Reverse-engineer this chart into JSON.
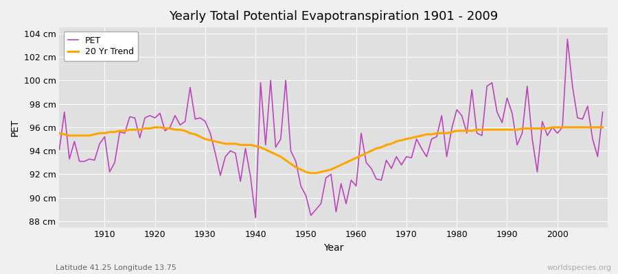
{
  "title": "Yearly Total Potential Evapotranspiration 1901 - 2009",
  "xlabel": "Year",
  "ylabel": "PET",
  "subtitle": "Latitude 41.25 Longitude 13.75",
  "watermark": "worldspecies.org",
  "ylim": [
    87.5,
    104.5
  ],
  "yticks": [
    88,
    90,
    92,
    94,
    96,
    98,
    100,
    102,
    104
  ],
  "ytick_labels": [
    "88 cm",
    "90 cm",
    "92 cm",
    "94 cm",
    "96 cm",
    "98 cm",
    "100 cm",
    "102 cm",
    "104 cm"
  ],
  "pet_color": "#bb44bb",
  "trend_color": "#ffa500",
  "fig_bg_color": "#f0f0f0",
  "plot_bg_color": "#e0e0e0",
  "legend_labels": [
    "PET",
    "20 Yr Trend"
  ],
  "years": [
    1901,
    1902,
    1903,
    1904,
    1905,
    1906,
    1907,
    1908,
    1909,
    1910,
    1911,
    1912,
    1913,
    1914,
    1915,
    1916,
    1917,
    1918,
    1919,
    1920,
    1921,
    1922,
    1923,
    1924,
    1925,
    1926,
    1927,
    1928,
    1929,
    1930,
    1931,
    1932,
    1933,
    1934,
    1935,
    1936,
    1937,
    1938,
    1939,
    1940,
    1941,
    1942,
    1943,
    1944,
    1945,
    1946,
    1947,
    1948,
    1949,
    1950,
    1951,
    1952,
    1953,
    1954,
    1955,
    1956,
    1957,
    1958,
    1959,
    1960,
    1961,
    1962,
    1963,
    1964,
    1965,
    1966,
    1967,
    1968,
    1969,
    1970,
    1971,
    1972,
    1973,
    1974,
    1975,
    1976,
    1977,
    1978,
    1979,
    1980,
    1981,
    1982,
    1983,
    1984,
    1985,
    1986,
    1987,
    1988,
    1989,
    1990,
    1991,
    1992,
    1993,
    1994,
    1995,
    1996,
    1997,
    1998,
    1999,
    2000,
    2001,
    2002,
    2003,
    2004,
    2005,
    2006,
    2007,
    2008,
    2009
  ],
  "pet_values": [
    94.1,
    97.3,
    93.3,
    94.8,
    93.1,
    93.1,
    93.3,
    93.2,
    94.6,
    95.2,
    92.2,
    93.0,
    95.6,
    95.5,
    96.9,
    96.8,
    95.1,
    96.8,
    97.0,
    96.8,
    97.2,
    95.7,
    96.0,
    97.0,
    96.2,
    96.5,
    99.4,
    96.7,
    96.8,
    96.5,
    95.5,
    93.8,
    91.9,
    93.5,
    94.0,
    93.8,
    91.4,
    94.2,
    91.8,
    88.3,
    99.8,
    94.5,
    100.0,
    94.3,
    95.0,
    100.0,
    94.0,
    93.1,
    91.0,
    90.2,
    88.5,
    89.0,
    89.5,
    91.7,
    92.0,
    88.8,
    91.2,
    89.5,
    91.5,
    91.0,
    95.5,
    93.0,
    92.5,
    91.6,
    91.5,
    93.2,
    92.5,
    93.5,
    92.8,
    93.5,
    93.4,
    95.0,
    94.2,
    93.5,
    95.0,
    95.2,
    97.0,
    93.5,
    95.9,
    97.5,
    97.0,
    95.5,
    99.2,
    95.5,
    95.3,
    99.5,
    99.8,
    97.3,
    96.4,
    98.5,
    97.2,
    94.5,
    95.5,
    99.5,
    95.0,
    92.2,
    96.5,
    95.3,
    96.0,
    95.5,
    96.0,
    103.5,
    99.5,
    96.8,
    96.7,
    97.8,
    95.0,
    93.5,
    97.3
  ],
  "trend_values": [
    95.5,
    95.4,
    95.3,
    95.3,
    95.3,
    95.3,
    95.3,
    95.4,
    95.5,
    95.5,
    95.6,
    95.6,
    95.7,
    95.7,
    95.8,
    95.8,
    95.8,
    95.9,
    95.9,
    96.0,
    96.0,
    95.9,
    95.9,
    95.8,
    95.8,
    95.7,
    95.5,
    95.4,
    95.2,
    95.0,
    94.9,
    94.8,
    94.7,
    94.6,
    94.6,
    94.6,
    94.5,
    94.5,
    94.5,
    94.4,
    94.3,
    94.1,
    93.9,
    93.7,
    93.5,
    93.2,
    92.9,
    92.6,
    92.4,
    92.2,
    92.1,
    92.1,
    92.2,
    92.3,
    92.4,
    92.6,
    92.8,
    93.0,
    93.2,
    93.4,
    93.6,
    93.8,
    94.0,
    94.2,
    94.3,
    94.5,
    94.6,
    94.8,
    94.9,
    95.0,
    95.1,
    95.2,
    95.3,
    95.4,
    95.4,
    95.5,
    95.5,
    95.5,
    95.6,
    95.7,
    95.7,
    95.7,
    95.7,
    95.8,
    95.8,
    95.8,
    95.8,
    95.8,
    95.8,
    95.8,
    95.8,
    95.8,
    95.9,
    95.9,
    95.9,
    95.9,
    95.9,
    95.9,
    96.0,
    96.0,
    96.0,
    96.0,
    96.0,
    96.0,
    96.0,
    96.0,
    96.0,
    96.0,
    96.0
  ]
}
